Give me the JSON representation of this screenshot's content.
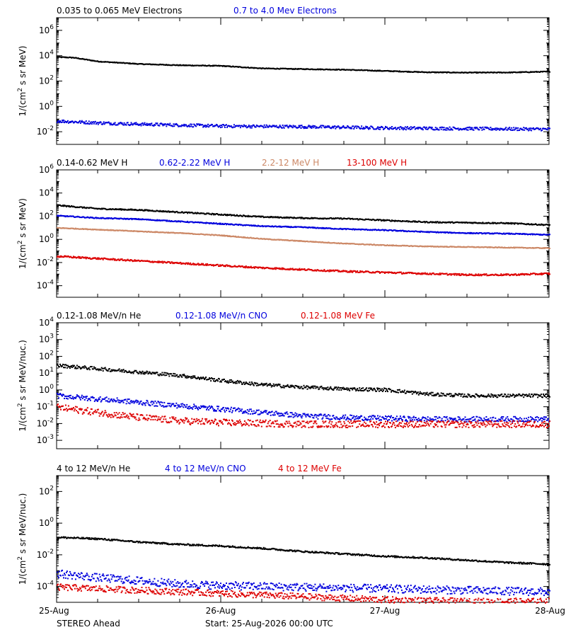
{
  "footer": {
    "spacecraft": "STEREO Ahead",
    "start_label": "Start: 25-Aug-2026 00:00 UTC"
  },
  "x_axis": {
    "tick_labels": [
      "25-Aug",
      "26-Aug",
      "27-Aug",
      "28-Aug"
    ],
    "range_days": [
      0,
      3
    ]
  },
  "chart_data": [
    {
      "type": "scatter",
      "title_entries": [
        {
          "text": "0.035 to 0.065 MeV Electrons",
          "color": "#000000"
        },
        {
          "text": "0.7 to 4.0 Mev Electrons",
          "color": "#0000dd"
        }
      ],
      "ylabel_base": "1/(cm",
      "ylabel_sup": "2",
      "ylabel_rest": " s sr MeV)",
      "ylim_log10": [
        -3,
        7
      ],
      "y_ticks": [
        -2,
        0,
        2,
        4,
        6
      ],
      "series": [
        {
          "name": "0.035 to 0.065 MeV Electrons",
          "color": "#000000",
          "x": [
            0,
            0.1,
            0.25,
            0.5,
            0.75,
            1.0,
            1.25,
            1.5,
            1.75,
            2.0,
            2.25,
            2.5,
            2.75,
            3.0
          ],
          "y_log10": [
            3.95,
            3.9,
            3.6,
            3.4,
            3.3,
            3.25,
            3.05,
            3.0,
            2.95,
            2.85,
            2.75,
            2.72,
            2.73,
            2.8
          ],
          "noise": 0.03
        },
        {
          "name": "0.7 to 4.0 Mev Electrons",
          "color": "#0000dd",
          "x": [
            0,
            0.25,
            0.5,
            1.0,
            1.5,
            2.0,
            2.5,
            3.0
          ],
          "y_log10": [
            -1.1,
            -1.25,
            -1.35,
            -1.5,
            -1.55,
            -1.65,
            -1.7,
            -1.75
          ],
          "noise": 0.12
        }
      ]
    },
    {
      "type": "scatter",
      "title_entries": [
        {
          "text": "0.14-0.62 MeV H",
          "color": "#000000"
        },
        {
          "text": "0.62-2.22 MeV H",
          "color": "#0000dd"
        },
        {
          "text": "2.2-12 MeV H",
          "color": "#cc8866"
        },
        {
          "text": "13-100 MeV H",
          "color": "#dd0000"
        }
      ],
      "ylabel_base": "1/(cm",
      "ylabel_sup": "2",
      "ylabel_rest": " s sr MeV)",
      "ylim_log10": [
        -5,
        6
      ],
      "y_ticks": [
        -4,
        -2,
        0,
        2,
        4,
        6
      ],
      "series": [
        {
          "name": "0.14-0.62 MeV H",
          "color": "#000000",
          "x": [
            0,
            0.25,
            0.5,
            0.75,
            1.0,
            1.25,
            1.5,
            1.75,
            2.0,
            2.25,
            2.5,
            2.75,
            3.0
          ],
          "y_log10": [
            3.0,
            2.7,
            2.6,
            2.4,
            2.2,
            2.0,
            1.9,
            1.85,
            1.7,
            1.55,
            1.5,
            1.45,
            1.3
          ],
          "noise": 0.05
        },
        {
          "name": "0.62-2.22 MeV H",
          "color": "#0000dd",
          "x": [
            0,
            0.25,
            0.5,
            0.75,
            1.0,
            1.25,
            1.5,
            1.75,
            2.0,
            2.25,
            2.5,
            2.75,
            3.0
          ],
          "y_log10": [
            2.1,
            1.9,
            1.8,
            1.6,
            1.4,
            1.2,
            1.1,
            0.95,
            0.85,
            0.7,
            0.6,
            0.55,
            0.45
          ],
          "noise": 0.04
        },
        {
          "name": "2.2-12 MeV H",
          "color": "#cc8866",
          "x": [
            0,
            0.25,
            0.5,
            0.75,
            1.0,
            1.25,
            1.5,
            1.75,
            2.0,
            2.25,
            2.5,
            2.75,
            3.0
          ],
          "y_log10": [
            1.05,
            0.9,
            0.75,
            0.6,
            0.4,
            0.1,
            -0.1,
            -0.3,
            -0.45,
            -0.55,
            -0.6,
            -0.65,
            -0.7
          ],
          "noise": 0.03
        },
        {
          "name": "13-100 MeV H",
          "color": "#dd0000",
          "x": [
            0,
            0.25,
            0.5,
            0.75,
            1.0,
            1.25,
            1.5,
            1.75,
            2.0,
            2.25,
            2.5,
            2.75,
            3.0
          ],
          "y_log10": [
            -1.4,
            -1.6,
            -1.8,
            -2.0,
            -2.2,
            -2.4,
            -2.55,
            -2.7,
            -2.8,
            -2.9,
            -3.0,
            -3.0,
            -2.9
          ],
          "noise": 0.07
        }
      ]
    },
    {
      "type": "scatter",
      "title_entries": [
        {
          "text": "0.12-1.08 MeV/n He",
          "color": "#000000"
        },
        {
          "text": "0.12-1.08 MeV/n CNO",
          "color": "#0000dd"
        },
        {
          "text": "0.12-1.08 MeV Fe",
          "color": "#dd0000"
        }
      ],
      "ylabel_base": "1/(cm",
      "ylabel_sup": "2",
      "ylabel_rest": " s sr MeV/nuc.)",
      "ylim_log10": [
        -3.5,
        4
      ],
      "y_ticks": [
        -3,
        -2,
        -1,
        0,
        1,
        2,
        3,
        4
      ],
      "series": [
        {
          "name": "0.12-1.08 MeV/n He",
          "color": "#000000",
          "x": [
            0,
            0.25,
            0.5,
            0.75,
            1.0,
            1.25,
            1.5,
            1.75,
            2.0,
            2.25,
            2.5,
            2.75,
            3.0
          ],
          "y_log10": [
            1.5,
            1.3,
            1.1,
            0.9,
            0.6,
            0.35,
            0.2,
            0.1,
            0.05,
            -0.2,
            -0.3,
            -0.3,
            -0.3
          ],
          "noise": 0.1
        },
        {
          "name": "0.12-1.08 MeV/n CNO",
          "color": "#0000dd",
          "x": [
            0,
            0.25,
            0.5,
            0.75,
            1.0,
            1.25,
            1.5,
            1.75,
            2.0,
            2.25,
            2.5,
            2.75,
            3.0
          ],
          "y_log10": [
            -0.3,
            -0.5,
            -0.7,
            -0.9,
            -1.1,
            -1.3,
            -1.5,
            -1.6,
            -1.65,
            -1.7,
            -1.7,
            -1.7,
            -1.7
          ],
          "noise": 0.15
        },
        {
          "name": "0.12-1.08 MeV Fe",
          "color": "#dd0000",
          "x": [
            0,
            0.25,
            0.5,
            0.75,
            1.0,
            1.5,
            2.0,
            2.5,
            3.0
          ],
          "y_log10": [
            -1.0,
            -1.3,
            -1.6,
            -1.8,
            -1.9,
            -2.0,
            -2.0,
            -2.0,
            -2.0
          ],
          "noise": 0.2
        }
      ]
    },
    {
      "type": "scatter",
      "title_entries": [
        {
          "text": "4 to 12 MeV/n He",
          "color": "#000000"
        },
        {
          "text": "4 to 12 MeV/n CNO",
          "color": "#0000dd"
        },
        {
          "text": "4 to 12 MeV Fe",
          "color": "#dd0000"
        }
      ],
      "ylabel_base": "1/(cm",
      "ylabel_sup": "2",
      "ylabel_rest": " s sr MeV/nuc.)",
      "ylim_log10": [
        -5,
        3
      ],
      "y_ticks": [
        -4,
        -2,
        0,
        2
      ],
      "series": [
        {
          "name": "4 to 12 MeV/n He",
          "color": "#000000",
          "x": [
            0,
            0.25,
            0.5,
            0.75,
            1.0,
            1.25,
            1.5,
            1.75,
            2.0,
            2.25,
            2.5,
            2.75,
            3.0
          ],
          "y_log10": [
            -0.85,
            -0.95,
            -1.15,
            -1.3,
            -1.4,
            -1.55,
            -1.75,
            -1.9,
            -2.05,
            -2.15,
            -2.3,
            -2.45,
            -2.55
          ],
          "noise": 0.05
        },
        {
          "name": "4 to 12 MeV/n CNO",
          "color": "#0000dd",
          "x": [
            0,
            0.25,
            0.5,
            0.75,
            1.0,
            1.5,
            2.0,
            2.5,
            3.0
          ],
          "y_log10": [
            -3.15,
            -3.4,
            -3.6,
            -3.8,
            -3.9,
            -4.0,
            -4.1,
            -4.2,
            -4.3
          ],
          "noise": 0.25
        },
        {
          "name": "4 to 12 MeV Fe",
          "color": "#dd0000",
          "x": [
            0,
            0.5,
            1.0,
            1.5,
            2.0,
            2.5,
            3.0
          ],
          "y_log10": [
            -4.0,
            -4.2,
            -4.4,
            -4.6,
            -4.8,
            -4.9,
            -4.9
          ],
          "noise": 0.2
        }
      ]
    }
  ]
}
